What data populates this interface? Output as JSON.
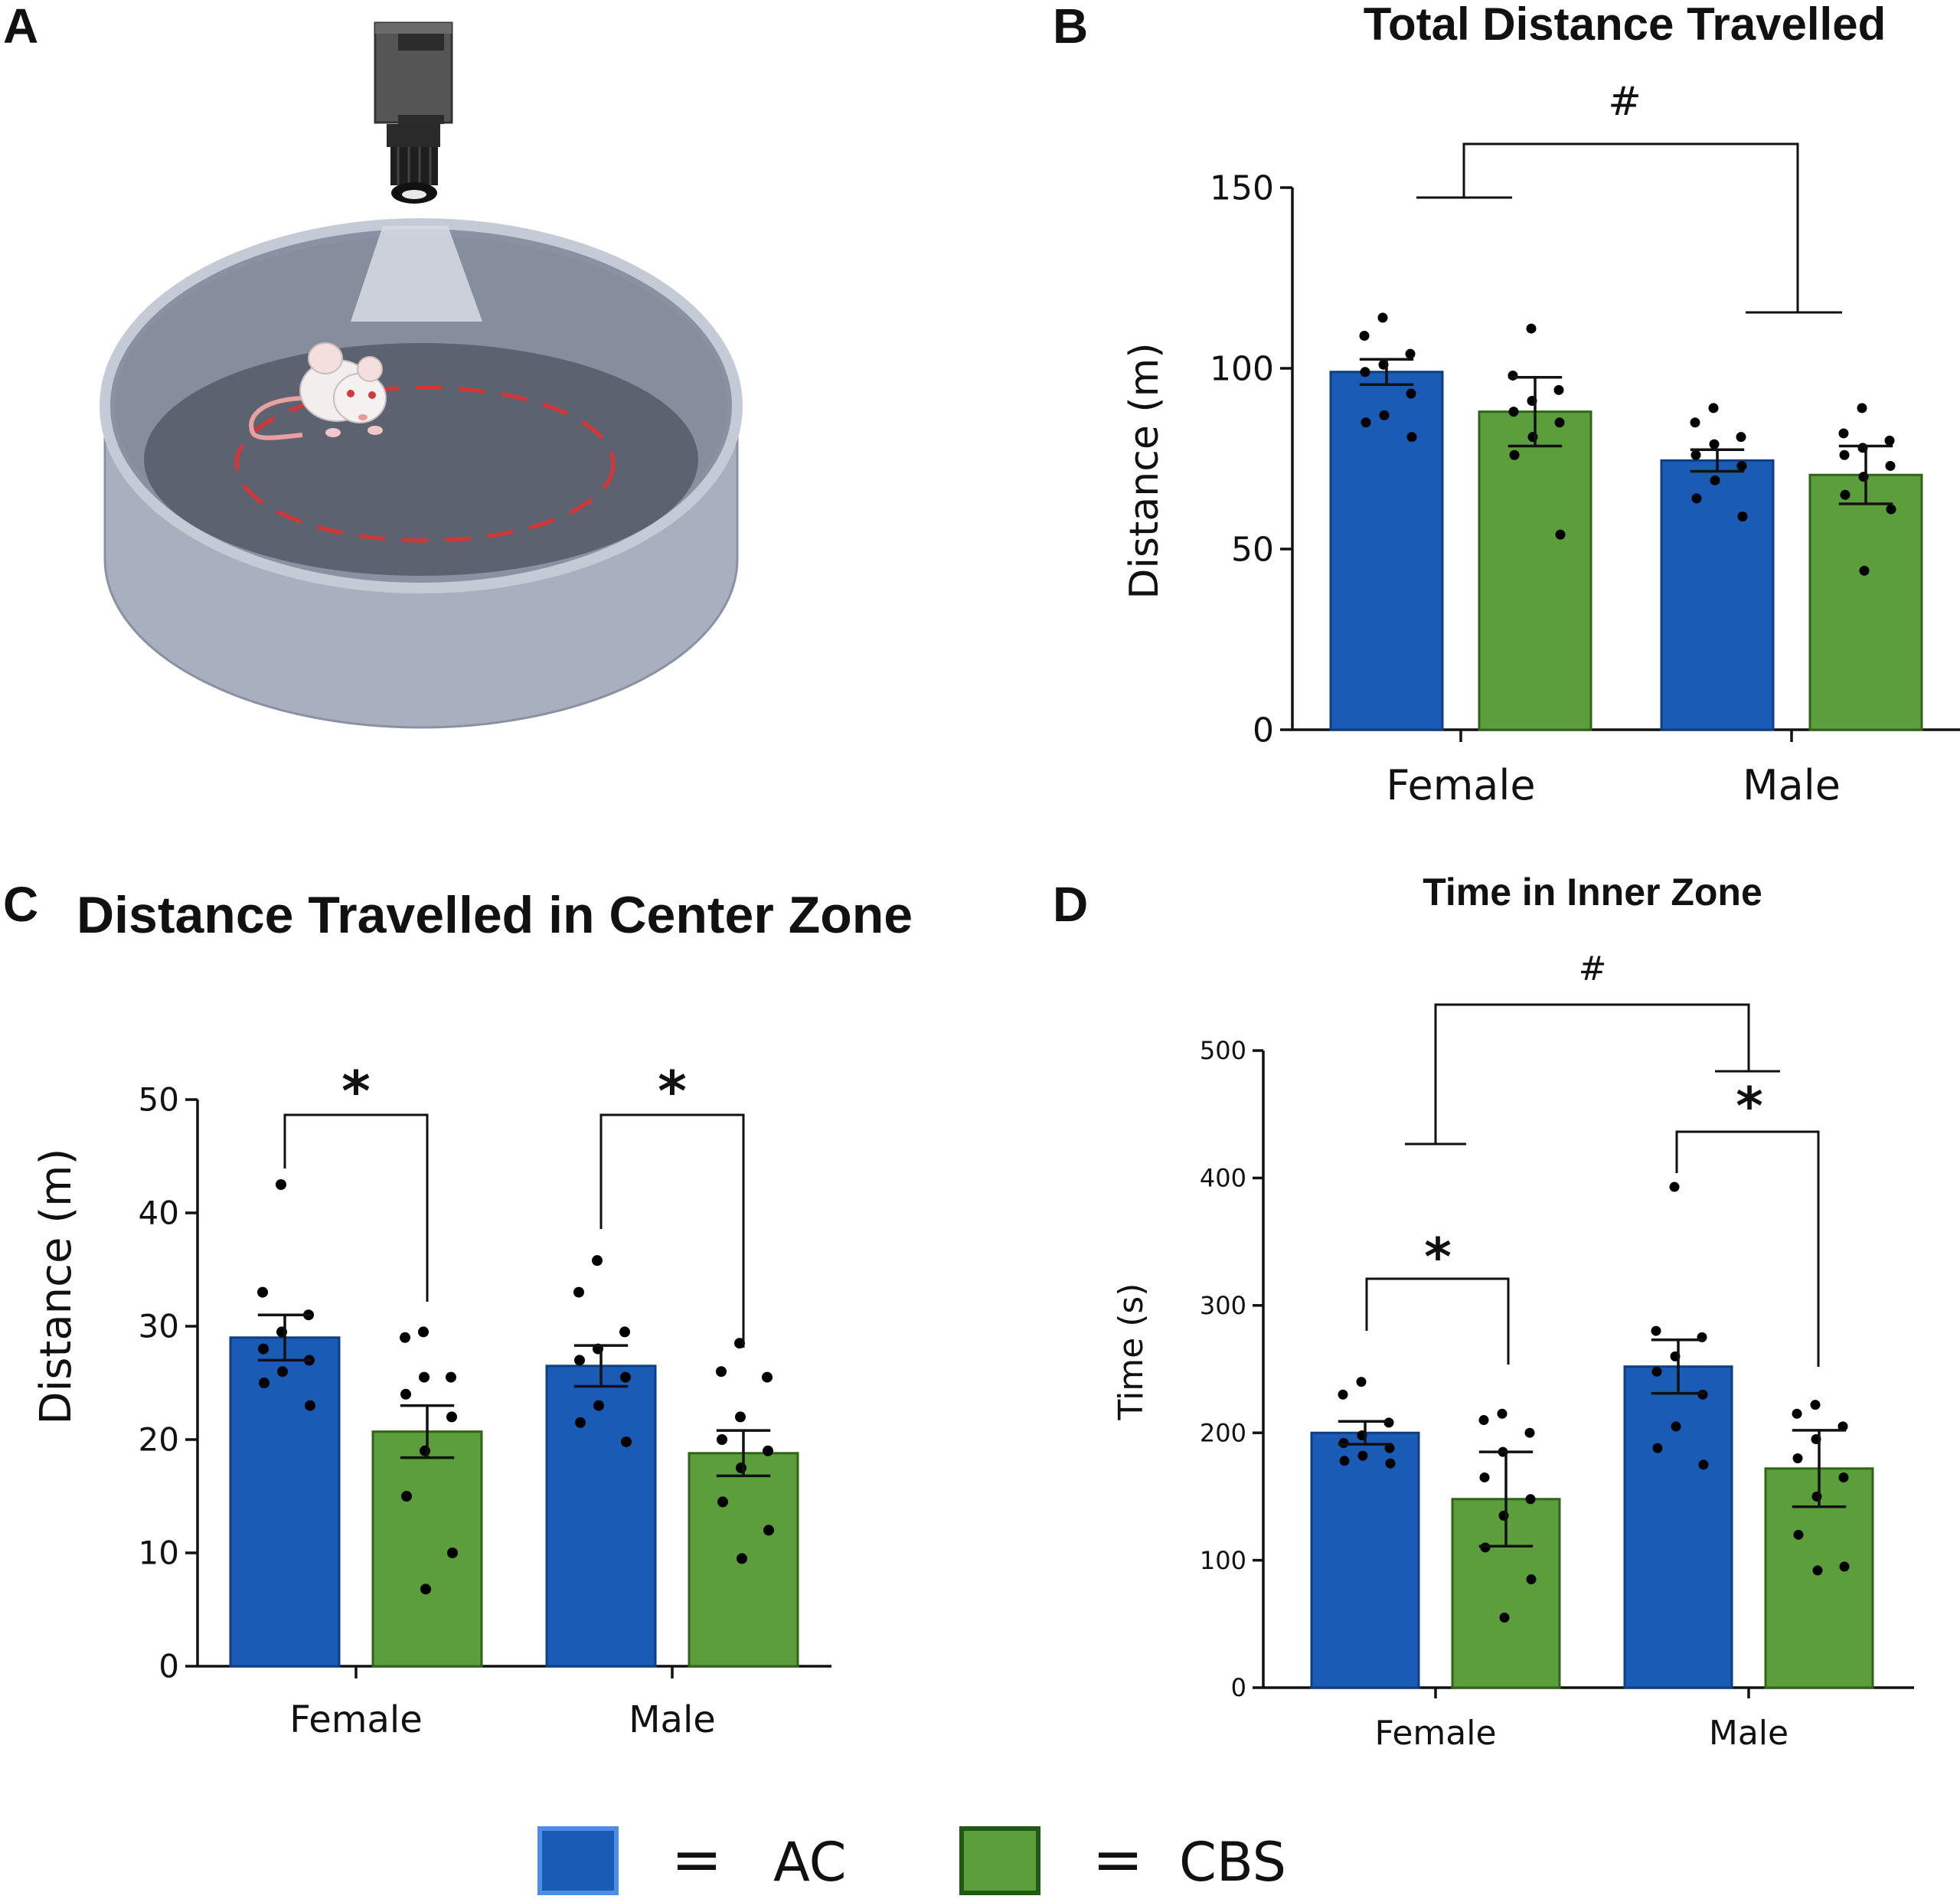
{
  "panel_labels": {
    "a": "A",
    "b": "B",
    "c": "C",
    "d": "D"
  },
  "legend": [
    {
      "label": "AC",
      "symbol": "=",
      "color": "#1a5bb5"
    },
    {
      "label": "CBS",
      "symbol": "=",
      "color": "#5b9e3b"
    }
  ],
  "chart_data": [
    {
      "id": "b",
      "type": "bar",
      "title": "Total Distance Travelled",
      "ylabel": "Distance (m)",
      "xlabel": "",
      "categories": [
        "Female",
        "Male"
      ],
      "ylim": [
        0,
        150
      ],
      "yticks": [
        0,
        50,
        100,
        150
      ],
      "series": [
        {
          "name": "AC",
          "values": [
            99,
            74.5
          ],
          "sem": [
            3.5,
            3
          ],
          "points": [
            [
              114,
              109,
              104,
              101,
              99,
              93,
              87,
              85,
              81
            ],
            [
              89,
              85,
              81,
              79,
              76,
              73,
              69,
              64,
              59
            ]
          ]
        },
        {
          "name": "CBS",
          "values": [
            88,
            70.5
          ],
          "sem": [
            9.5,
            8
          ],
          "points": [
            [
              111,
              98,
              94,
              91,
              88,
              85,
              81,
              76,
              54
            ],
            [
              89,
              82,
              80,
              78,
              76,
              73,
              70,
              65,
              61,
              44
            ]
          ]
        }
      ],
      "annotations": [
        {
          "text": "#",
          "type": "bracket"
        }
      ]
    },
    {
      "id": "c",
      "type": "bar",
      "title": "Distance Travelled in Center Zone",
      "ylabel": "Distance (m)",
      "xlabel": "",
      "categories": [
        "Female",
        "Male"
      ],
      "ylim": [
        0,
        50
      ],
      "yticks": [
        0,
        10,
        20,
        30,
        40,
        50
      ],
      "series": [
        {
          "name": "AC",
          "values": [
            29,
            26.5
          ],
          "sem": [
            2,
            1.8
          ],
          "points": [
            [
              42.5,
              33,
              31,
              29.5,
              28,
              27,
              26,
              25,
              23
            ],
            [
              35.8,
              33,
              29.5,
              28,
              27,
              25.5,
              23,
              21.5,
              19.8
            ]
          ]
        },
        {
          "name": "CBS",
          "values": [
            20.7,
            18.8
          ],
          "sem": [
            2.3,
            2
          ],
          "points": [
            [
              29.5,
              29,
              25.5,
              25.5,
              24,
              22,
              19,
              15,
              10,
              6.8
            ],
            [
              28.5,
              26,
              25.5,
              22,
              20,
              19,
              17.5,
              14.5,
              12,
              9.5
            ]
          ]
        }
      ],
      "annotations": [
        {
          "text": "*",
          "type": "bracket"
        },
        {
          "text": "*",
          "type": "bracket"
        }
      ]
    },
    {
      "id": "d",
      "type": "bar",
      "title": "Time in Inner Zone",
      "ylabel": "Time (s)",
      "xlabel": "",
      "categories": [
        "Female",
        "Male"
      ],
      "ylim": [
        0,
        500
      ],
      "yticks": [
        0,
        100,
        200,
        300,
        400,
        500
      ],
      "series": [
        {
          "name": "AC",
          "values": [
            200,
            252
          ],
          "sem": [
            9,
            21
          ],
          "points": [
            [
              240,
              230,
              208,
              198,
              192,
              188,
              182,
              178,
              176
            ],
            [
              393,
              280,
              275,
              260,
              248,
              230,
              205,
              188,
              175
            ]
          ]
        },
        {
          "name": "CBS",
          "values": [
            148,
            172
          ],
          "sem": [
            37,
            30
          ],
          "points": [
            [
              215,
              210,
              200,
              185,
              165,
              148,
              135,
              110,
              85,
              55
            ],
            [
              222,
              215,
              205,
              195,
              180,
              165,
              150,
              120,
              95,
              92
            ]
          ]
        }
      ],
      "annotations": [
        {
          "text": "#",
          "type": "bracket"
        },
        {
          "text": "*",
          "type": "bracket"
        },
        {
          "text": "*",
          "type": "bracket"
        }
      ]
    }
  ]
}
